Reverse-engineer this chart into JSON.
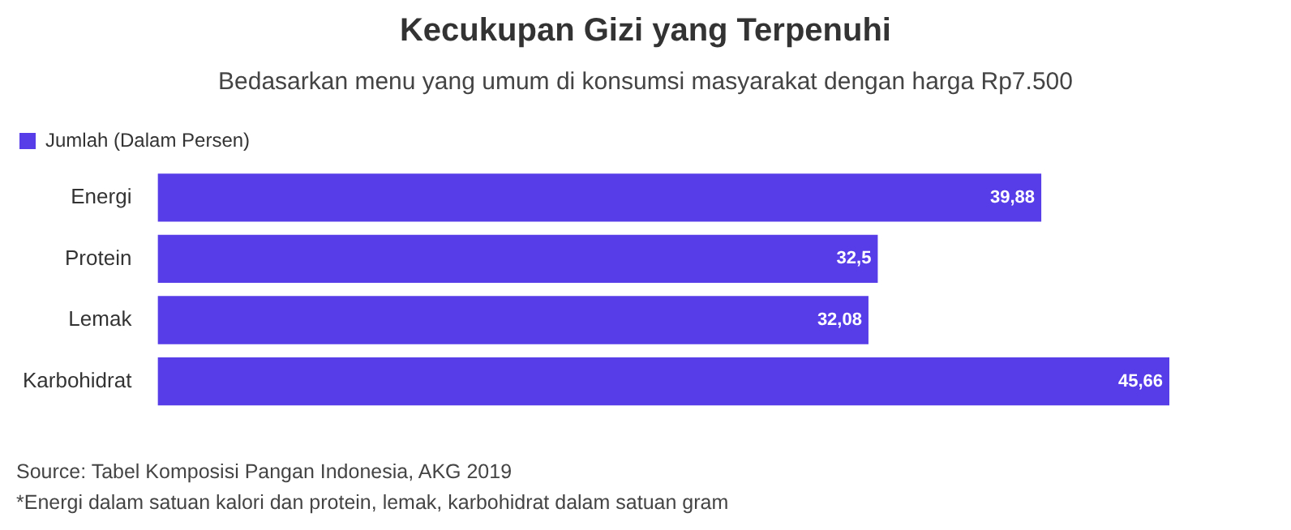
{
  "chart_data": {
    "type": "bar",
    "orientation": "horizontal",
    "title": "Kecukupan Gizi yang Terpenuhi",
    "subtitle": "Bedasarkan menu yang umum di konsumsi masyarakat dengan harga Rp7.500",
    "categories": [
      "Energi",
      "Protein",
      "Lemak",
      "Karbohidrat"
    ],
    "series": [
      {
        "name": "Jumlah (Dalam Persen)",
        "color": "#563de8",
        "values": [
          39.88,
          32.5,
          32.08,
          45.66
        ],
        "value_labels": [
          "39,88",
          "32,5",
          "32,08",
          "45,66"
        ]
      }
    ],
    "legend": "top left",
    "annotations": [
      "Source: Tabel Komposisi Pangan Indonesia, AKG 2019",
      "*Energi dalam satuan kalori dan protein, lemak, karbohidrat dalam satuan gram"
    ]
  }
}
